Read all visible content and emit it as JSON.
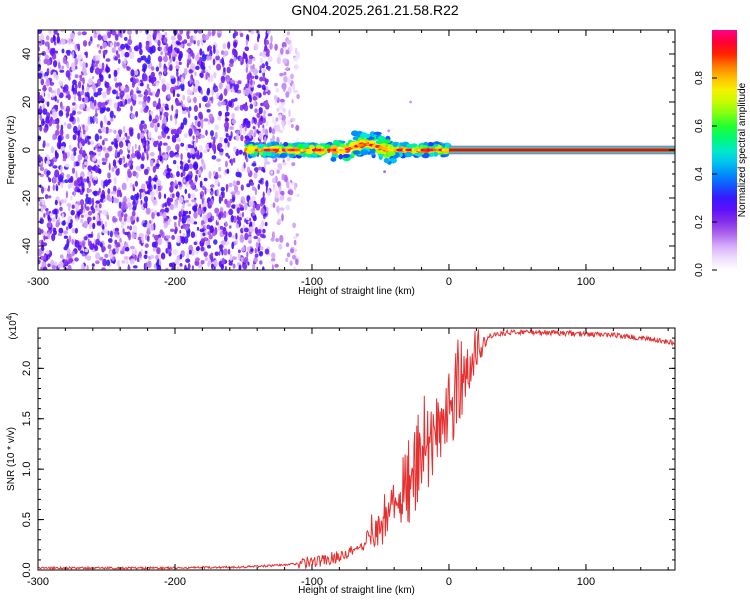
{
  "title": "GN04.2025.261.21.58.R22",
  "colors": {
    "snr_line": "#e53030",
    "colormap": [
      "#ffffff",
      "#8a2be2",
      "#0000ff",
      "#00ffff",
      "#00ff00",
      "#ffff00",
      "#ff8000",
      "#ff0000",
      "#ff00aa"
    ]
  },
  "chart_data": [
    {
      "type": "heatmap",
      "xlabel": "Height of straight line (km)",
      "ylabel": "Frequency (Hz)",
      "xlim": [
        -300,
        165
      ],
      "ylim": [
        -50,
        50
      ],
      "x_ticks": [
        -300,
        -200,
        -100,
        0,
        100
      ],
      "x_tick_labels": [
        "-300",
        "-200",
        "-100",
        "0",
        "100"
      ],
      "y_ticks": [
        -40,
        -20,
        0,
        20,
        40
      ],
      "y_tick_labels": [
        "-40",
        "-20",
        "0",
        "20",
        "40"
      ],
      "colorbar": {
        "label": "Normalized spectral amplitude",
        "range": [
          0,
          1
        ],
        "ticks": [
          0.0,
          0.2,
          0.4,
          0.6,
          0.8
        ],
        "tick_labels": [
          "0.0",
          "0.2",
          "0.4",
          "0.6",
          "0.8"
        ]
      },
      "description_values": {
        "noise_region_km": [
          -300,
          -135
        ],
        "signal_start_km": -148,
        "tone_frequency_hz": 0,
        "tone_amplitude_after_0_km": 1.0
      }
    },
    {
      "type": "line",
      "xlabel": "Height of straight line (km)",
      "ylabel": "SNR (10 * v/v)",
      "y_multiplier_label": "(x10",
      "y_multiplier_exponent": "4",
      "y_multiplier_close": ")",
      "xlim": [
        -300,
        165
      ],
      "ylim": [
        0,
        2.4
      ],
      "x_ticks": [
        -300,
        -200,
        -100,
        0,
        100
      ],
      "x_tick_labels": [
        "-300",
        "-200",
        "-100",
        "0",
        "100"
      ],
      "y_ticks": [
        0.0,
        0.5,
        1.0,
        1.5,
        2.0
      ],
      "y_tick_labels": [
        "0.0",
        "0.5",
        "1.0",
        "1.5",
        "2.0"
      ],
      "series": [
        {
          "x": [
            -300,
            -250,
            -200,
            -150,
            -120,
            -100,
            -90,
            -80,
            -70,
            -65,
            -60,
            -55,
            -50,
            -45,
            -40,
            -35,
            -30,
            -25,
            -20,
            -15,
            -10,
            -5,
            0,
            5,
            10,
            15,
            20,
            25,
            30,
            35,
            40,
            50,
            60,
            80,
            100,
            120,
            140,
            165
          ],
          "y": [
            0.02,
            0.02,
            0.02,
            0.03,
            0.05,
            0.08,
            0.1,
            0.14,
            0.2,
            0.25,
            0.32,
            0.4,
            0.5,
            0.6,
            0.72,
            0.85,
            0.98,
            1.1,
            1.22,
            1.34,
            1.46,
            1.58,
            1.72,
            1.86,
            2.0,
            2.12,
            2.22,
            2.28,
            2.32,
            2.34,
            2.35,
            2.36,
            2.36,
            2.35,
            2.34,
            2.33,
            2.3,
            2.25
          ]
        }
      ]
    }
  ]
}
